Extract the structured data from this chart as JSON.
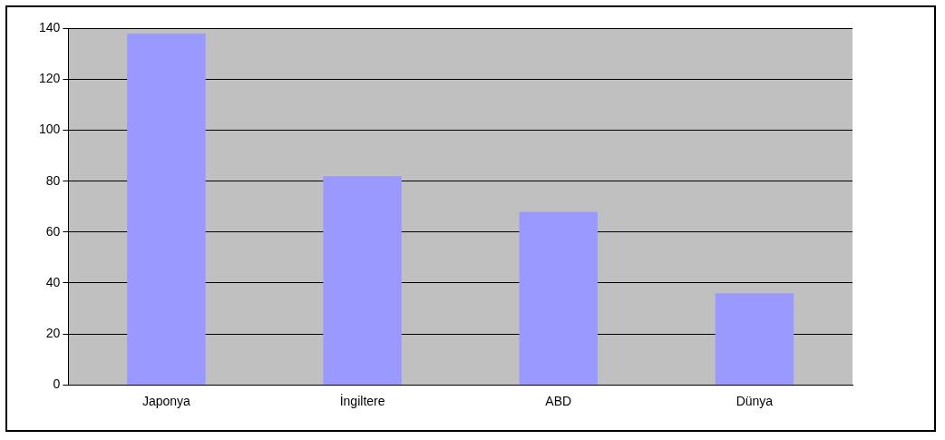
{
  "chart_data": {
    "type": "bar",
    "categories": [
      "Japonya",
      "İngiltere",
      "ABD",
      "Dünya"
    ],
    "values": [
      138,
      82,
      68,
      36
    ],
    "color": "#9999ff",
    "ylim": [
      0,
      140
    ],
    "yticks": [
      0,
      20,
      40,
      60,
      80,
      100,
      120,
      140
    ],
    "grid": "y",
    "legend": false
  }
}
